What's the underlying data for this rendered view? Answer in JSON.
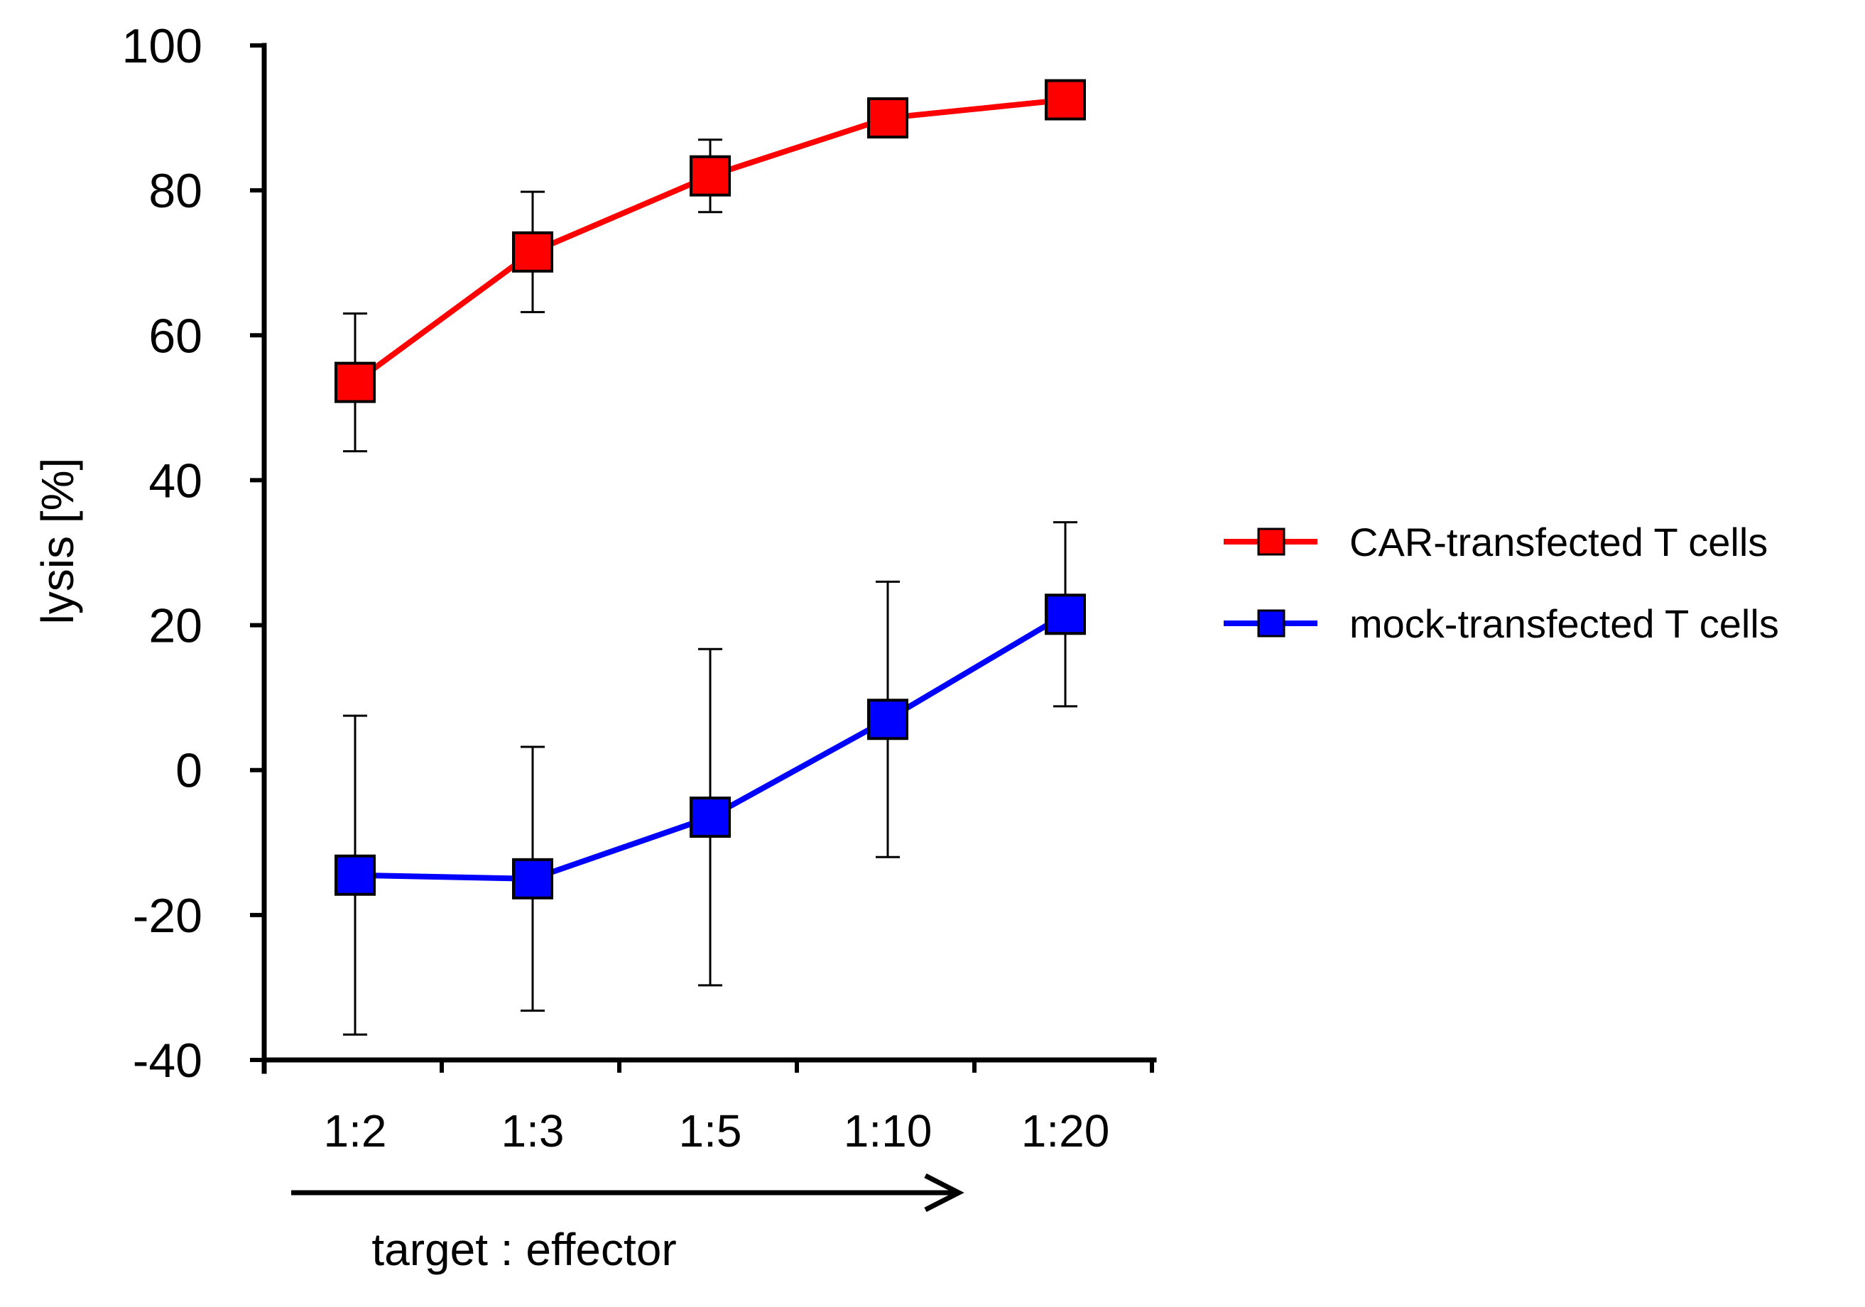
{
  "chart_data": {
    "type": "line",
    "title": "",
    "xlabel": "target : effector",
    "ylabel": "lysis [%]",
    "categories": [
      "1:2",
      "1:3",
      "1:5",
      "1:10",
      "1:20"
    ],
    "ylim": [
      -40,
      100
    ],
    "yticks": [
      -40,
      -20,
      0,
      20,
      40,
      60,
      80,
      100
    ],
    "grid": false,
    "legend_position": "right",
    "x_arrow": true,
    "series": [
      {
        "name": "CAR-transfected T cells",
        "color": "#ff0000",
        "marker": "square",
        "values": [
          53.5,
          71.5,
          82,
          90,
          92.5
        ],
        "error": [
          9.5,
          8.3,
          5,
          0,
          0
        ]
      },
      {
        "name": "mock-transfected T cells",
        "color": "#0000ff",
        "marker": "square",
        "values": [
          -14.5,
          -15,
          -6.5,
          7,
          21.5
        ],
        "error": [
          22,
          18.2,
          23.2,
          19,
          12.7
        ]
      }
    ]
  }
}
